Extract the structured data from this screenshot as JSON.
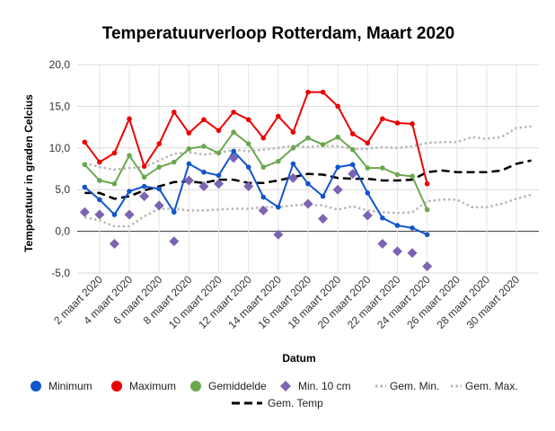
{
  "chart_data": {
    "type": "line",
    "title": "Temperatuurverloop Rotterdam, Maart 2020",
    "xlabel": "Datum",
    "ylabel": "Temperatuur in graden Celcius",
    "ylim": [
      -5,
      20
    ],
    "yticks": [
      "-5,0",
      "0,0",
      "5,0",
      "10,0",
      "15,0",
      "20,0"
    ],
    "ytick_values": [
      -5,
      0,
      5,
      10,
      15,
      20
    ],
    "grid": true,
    "legend_position": "bottom",
    "day_range": [
      1,
      31
    ],
    "xtick_days": [
      2,
      4,
      6,
      8,
      10,
      12,
      14,
      16,
      18,
      20,
      22,
      24,
      26,
      28,
      30
    ],
    "xticks": [
      "2 maart 2020",
      "4 maart 2020",
      "6 maart 2020",
      "8 maart 2020",
      "10 maart 2020",
      "12 maart 2020",
      "14 maart 2020",
      "16 maart 2020",
      "18 maart 2020",
      "20 maart 2020",
      "22 maart 2020",
      "24 maart 2020",
      "26 maart 2020",
      "28 maart 2020",
      "30 maart 2020"
    ],
    "series": [
      {
        "name": "Minimum",
        "style": "line-dot",
        "color": "#1155cc",
        "x": [
          1,
          2,
          3,
          4,
          5,
          6,
          7,
          8,
          9,
          10,
          11,
          12,
          13,
          14,
          15,
          16,
          17,
          18,
          19,
          20,
          21,
          22,
          23,
          24
        ],
        "values": [
          5.3,
          3.8,
          2.0,
          4.8,
          5.4,
          5.1,
          2.3,
          8.1,
          7.1,
          6.7,
          9.6,
          7.7,
          4.1,
          2.9,
          8.1,
          5.7,
          4.2,
          7.7,
          8.0,
          4.6,
          1.6,
          0.7,
          0.4,
          -0.4
        ]
      },
      {
        "name": "Maximum",
        "style": "line-dot",
        "color": "#ee0000",
        "x": [
          1,
          2,
          3,
          4,
          5,
          6,
          7,
          8,
          9,
          10,
          11,
          12,
          13,
          14,
          15,
          16,
          17,
          18,
          19,
          20,
          21,
          22,
          23,
          24
        ],
        "values": [
          10.7,
          8.3,
          9.4,
          13.5,
          7.8,
          10.5,
          14.3,
          11.8,
          13.4,
          12.1,
          14.3,
          13.4,
          11.2,
          13.8,
          11.9,
          16.7,
          16.7,
          15.0,
          11.7,
          10.6,
          13.5,
          13.0,
          12.9,
          5.7
        ]
      },
      {
        "name": "Gemiddelde",
        "style": "line-dot",
        "color": "#6aa84f",
        "x": [
          1,
          2,
          3,
          4,
          5,
          6,
          7,
          8,
          9,
          10,
          11,
          12,
          13,
          14,
          15,
          16,
          17,
          18,
          19,
          20,
          21,
          22,
          23,
          24
        ],
        "values": [
          8.0,
          6.1,
          5.7,
          9.1,
          6.5,
          7.7,
          8.3,
          9.9,
          10.2,
          9.4,
          11.9,
          10.5,
          7.7,
          8.4,
          10.0,
          11.2,
          10.4,
          11.3,
          9.8,
          7.6,
          7.6,
          6.8,
          6.6,
          2.6
        ]
      },
      {
        "name": "Min. 10 cm",
        "style": "diamond",
        "color": "#7b64b1",
        "x": [
          1,
          2,
          3,
          4,
          5,
          6,
          7,
          8,
          9,
          10,
          11,
          12,
          13,
          14,
          15,
          16,
          17,
          18,
          19,
          20,
          21,
          22,
          23,
          24
        ],
        "values": [
          2.3,
          2.0,
          -1.5,
          2.0,
          4.2,
          3.1,
          -1.2,
          6.1,
          5.4,
          5.7,
          8.8,
          5.4,
          2.5,
          -0.4,
          6.4,
          3.3,
          1.5,
          5.0,
          6.9,
          1.9,
          -1.5,
          -2.4,
          -2.6,
          -4.2
        ]
      },
      {
        "name": "Gem. Min.",
        "style": "dotted",
        "color": "#b7b7b7",
        "x": [
          1,
          2,
          3,
          4,
          5,
          6,
          7,
          8,
          9,
          10,
          11,
          12,
          13,
          14,
          15,
          16,
          17,
          18,
          19,
          20,
          21,
          22,
          23,
          24,
          25,
          26,
          27,
          28,
          29,
          30,
          31
        ],
        "values": [
          1.7,
          1.3,
          0.6,
          0.6,
          1.8,
          2.7,
          2.7,
          2.5,
          2.5,
          2.6,
          2.7,
          2.7,
          2.9,
          2.9,
          3.1,
          3.2,
          3.1,
          2.6,
          3.0,
          2.5,
          2.3,
          2.2,
          2.3,
          3.6,
          3.8,
          3.8,
          2.9,
          2.9,
          3.3,
          3.9,
          4.4
        ]
      },
      {
        "name": "Gem. Max.",
        "style": "dotted",
        "color": "#b7b7b7",
        "x": [
          1,
          2,
          3,
          4,
          5,
          6,
          7,
          8,
          9,
          10,
          11,
          12,
          13,
          14,
          15,
          16,
          17,
          18,
          19,
          20,
          21,
          22,
          23,
          24,
          25,
          26,
          27,
          28,
          29,
          30,
          31
        ],
        "values": [
          8.2,
          7.7,
          7.4,
          7.6,
          7.7,
          8.5,
          9.3,
          9.5,
          9.2,
          9.4,
          9.8,
          9.6,
          9.8,
          10.0,
          10.3,
          10.1,
          10.3,
          10.2,
          9.9,
          9.9,
          10.1,
          10.0,
          10.2,
          10.6,
          10.7,
          10.7,
          11.3,
          11.1,
          11.3,
          12.4,
          12.6
        ]
      },
      {
        "name": "Gem. Temp",
        "style": "dashed",
        "color": "#000000",
        "x": [
          1,
          2,
          3,
          4,
          5,
          6,
          7,
          8,
          9,
          10,
          11,
          12,
          13,
          14,
          15,
          16,
          17,
          18,
          19,
          20,
          21,
          22,
          23,
          24,
          25,
          26,
          27,
          28,
          29,
          30,
          31
        ],
        "values": [
          4.6,
          4.6,
          3.9,
          4.2,
          4.9,
          5.4,
          5.9,
          6.0,
          5.8,
          6.2,
          6.2,
          5.8,
          5.8,
          6.1,
          6.5,
          6.9,
          6.8,
          6.4,
          6.3,
          6.3,
          6.1,
          6.1,
          6.2,
          7.1,
          7.3,
          7.1,
          7.1,
          7.1,
          7.3,
          8.1,
          8.5
        ]
      }
    ]
  }
}
